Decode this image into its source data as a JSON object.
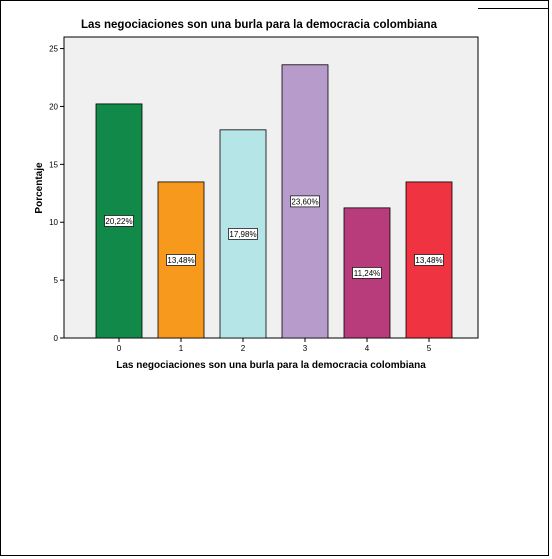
{
  "chart_data": {
    "type": "bar",
    "title": "Las negociaciones son una burla para la democracia colombiana",
    "xlabel": "Las negociaciones son una burla para la democracia colombiana",
    "ylabel": "Porcentaje",
    "categories": [
      "0",
      "1",
      "2",
      "3",
      "4",
      "5"
    ],
    "values": [
      20.22,
      13.48,
      17.98,
      23.6,
      11.24,
      13.48
    ],
    "value_labels": [
      "20,22%",
      "13,48%",
      "17,98%",
      "23,60%",
      "11,24%",
      "13,48%"
    ],
    "ylim": [
      0,
      26
    ],
    "yticks": [
      0,
      5,
      10,
      15,
      20,
      25
    ],
    "grid": false,
    "plot_background": "#f0f0f0",
    "colors": [
      "#118a49",
      "#f7991c",
      "#b5e5e7",
      "#b79bcb",
      "#b83c7c",
      "#ef3340"
    ]
  }
}
